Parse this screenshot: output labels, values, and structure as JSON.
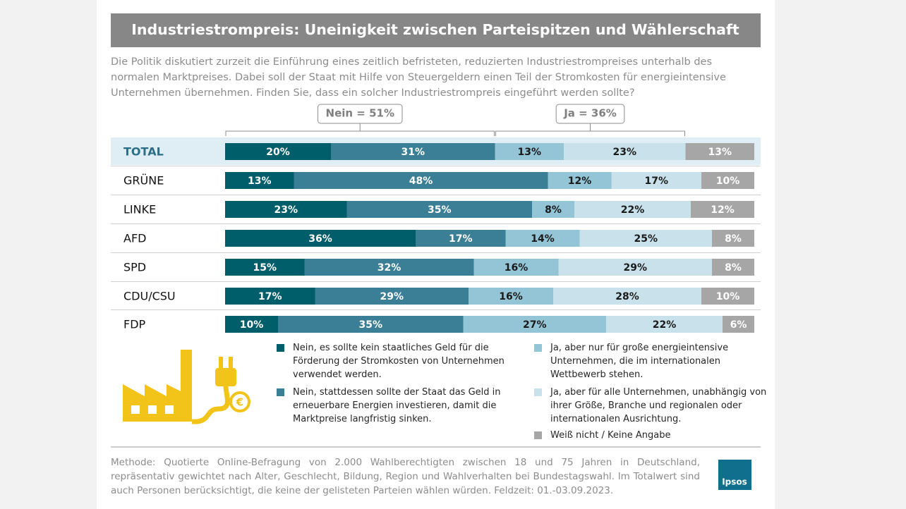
{
  "chart_data": {
    "type": "bar",
    "orientation": "horizontal",
    "stacked": true,
    "title": "Industriestrompreis: Uneinigkeit zwischen Parteispitzen und Wählerschaft",
    "subtitle": "Die Politik diskutiert zurzeit die Einführung eines zeitlich befristeten, reduzierten Industriestrompreises unterhalb des normalen Marktpreises. Dabei soll der Staat mit Hilfe von Steuergeldern einen Teil der Stromkosten für energieintensive Unternehmen übernehmen. Finden Sie, dass ein solcher Industriestrompreis eingeführt werden sollte?",
    "annotations": [
      "Nein = 51%",
      "Ja = 36%"
    ],
    "categories": [
      "TOTAL",
      "GRÜNE",
      "LINKE",
      "AFD",
      "SPD",
      "CDU/CSU",
      "FDP"
    ],
    "xlim": [
      0,
      100
    ],
    "series": [
      {
        "name": "Nein, es sollte kein staatliches Geld für die Förderung der Stromkosten von Unternehmen verwendet werden.",
        "color": "#005e6a",
        "values": [
          20,
          13,
          23,
          36,
          15,
          17,
          10
        ],
        "value_labels": [
          "20%",
          "13%",
          "23%",
          "36%",
          "15%",
          "17%",
          "10%"
        ]
      },
      {
        "name": "Nein, stattdessen sollte der Staat das Geld in erneuerbare Energien investieren, damit die Marktpreise langfristig sinken.",
        "color": "#3b7f96",
        "values": [
          31,
          48,
          35,
          17,
          32,
          29,
          35
        ],
        "value_labels": [
          "31%",
          "48%",
          "35%",
          "17%",
          "32%",
          "29%",
          "35%"
        ]
      },
      {
        "name": "Ja, aber nur für große energieintensive Unternehmen, die im internationalen Wettbewerb stehen.",
        "color": "#94c5d7",
        "values": [
          13,
          12,
          8,
          14,
          16,
          16,
          27
        ],
        "value_labels": [
          "13%",
          "12%",
          "8%",
          "14%",
          "16%",
          "16%",
          "27%"
        ]
      },
      {
        "name": "Ja, aber für alle Unternehmen, unabhängig von ihrer Größe, Branche und regionalen oder internationalen Ausrichtung.",
        "color": "#c8e1ea",
        "values": [
          23,
          17,
          22,
          25,
          29,
          28,
          22
        ],
        "value_labels": [
          "23%",
          "17%",
          "22%",
          "25%",
          "29%",
          "28%",
          "22%"
        ]
      },
      {
        "name": "Weiß nicht / Keine Angabe",
        "color": "#a6a6a6",
        "values": [
          13,
          10,
          12,
          8,
          8,
          10,
          6
        ],
        "value_labels": [
          "13%",
          "10%",
          "12%",
          "8%",
          "8%",
          "10%",
          "6%"
        ]
      }
    ],
    "note": "Methode: Quotierte Online-Befragung von 2.000 Wahlberechtigten zwischen 18 und 75 Jahren in Deutschland, repräsentativ gewichtet nach Alter, Geschlecht, Bildung, Region und Wahlverhalten bei Bundestagswahl. Im Totalwert sind auch Personen berücksichtigt, die keine der gelisteten Parteien wählen würden. Feldzeit: 01.-03.09.2023.",
    "logo": "Ipsos"
  }
}
